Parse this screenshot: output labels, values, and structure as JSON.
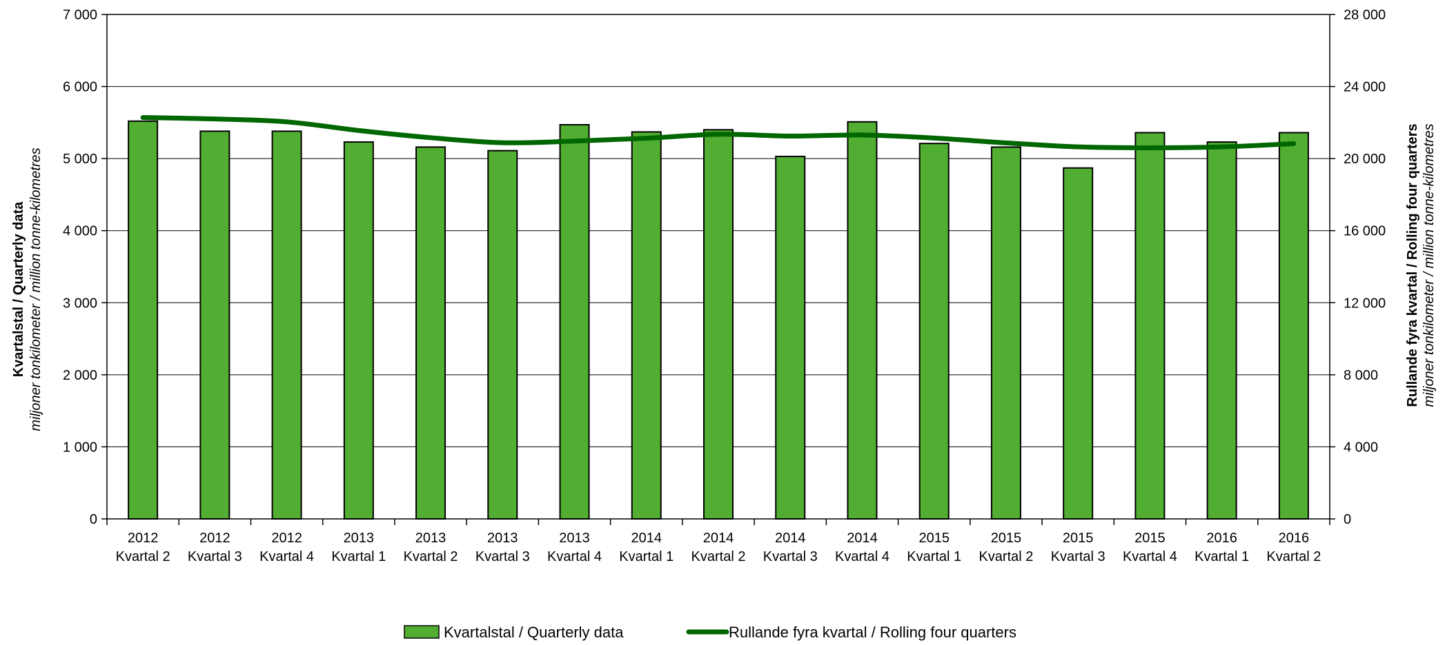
{
  "chart_data": {
    "type": "bar",
    "categories": [
      [
        "2012",
        "Kvartal 2"
      ],
      [
        "2012",
        "Kvartal 3"
      ],
      [
        "2012",
        "Kvartal 4"
      ],
      [
        "2013",
        "Kvartal 1"
      ],
      [
        "2013",
        "Kvartal 2"
      ],
      [
        "2013",
        "Kvartal 3"
      ],
      [
        "2013",
        "Kvartal 4"
      ],
      [
        "2014",
        "Kvartal 1"
      ],
      [
        "2014",
        "Kvartal 2"
      ],
      [
        "2014",
        "Kvartal 3"
      ],
      [
        "2014",
        "Kvartal 4"
      ],
      [
        "2015",
        "Kvartal 1"
      ],
      [
        "2015",
        "Kvartal 2"
      ],
      [
        "2015",
        "Kvartal 3"
      ],
      [
        "2015",
        "Kvartal 4"
      ],
      [
        "2016",
        "Kvartal 1"
      ],
      [
        "2016",
        "Kvartal 2"
      ]
    ],
    "series": [
      {
        "name": "Kvartalstal / Quarterly data",
        "type": "bar",
        "axis": "left",
        "color": "#52AE32",
        "values": [
          5520,
          5380,
          5380,
          5230,
          5160,
          5110,
          5470,
          5370,
          5400,
          5030,
          5510,
          5210,
          5160,
          4870,
          5360,
          5230,
          5360
        ]
      },
      {
        "name": "Rullande fyra kvartal / Rolling four quarters",
        "type": "line",
        "axis": "right",
        "color": "#006600",
        "values": [
          22280,
          22200,
          22040,
          21560,
          21160,
          20880,
          20970,
          21130,
          21350,
          21250,
          21310,
          21140,
          20870,
          20650,
          20600,
          20650,
          20830
        ]
      }
    ],
    "left_axis": {
      "ylim": [
        0,
        7000
      ],
      "ticks": [
        "0",
        "1 000",
        "2 000",
        "3 000",
        "4 000",
        "5 000",
        "6 000",
        "7 000"
      ],
      "title": "Kvartalstal  /  Quarterly data",
      "subtitle": "miljoner tonkilometer  / million tonne-kilometres"
    },
    "right_axis": {
      "ylim": [
        0,
        28000
      ],
      "ticks": [
        "0",
        "4 000",
        "8 000",
        "12 000",
        "16 000",
        "20 000",
        "24 000",
        "28 000"
      ],
      "title": "Rullande fyra kvartal  /  Rolling four quarters",
      "subtitle": "miljoner tonkilometer  / million tonne-kilometres"
    },
    "grid": true,
    "legend_position": "bottom-center"
  }
}
